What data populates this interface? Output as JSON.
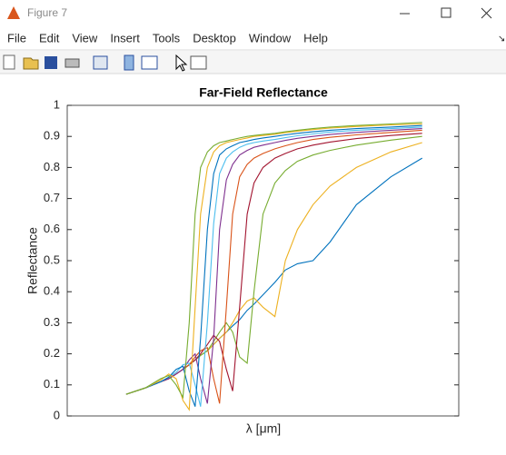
{
  "window": {
    "title": "Figure 7",
    "menu": [
      "File",
      "Edit",
      "View",
      "Insert",
      "Tools",
      "Desktop",
      "Window",
      "Help"
    ]
  },
  "chart_data": {
    "type": "line",
    "title": "Far-Field Reflectance",
    "xlabel": "λ [μm]",
    "ylabel": "Reflectance",
    "xscale": "log",
    "xlim": [
      0.1,
      10
    ],
    "ylim": [
      0,
      1
    ],
    "yticks": [
      0,
      0.1,
      0.2,
      0.3,
      0.4,
      0.5,
      0.6,
      0.7,
      0.8,
      0.9,
      1
    ],
    "x": [
      0.2,
      0.25,
      0.3,
      0.33,
      0.36,
      0.39,
      0.42,
      0.45,
      0.48,
      0.52,
      0.56,
      0.6,
      0.65,
      0.7,
      0.76,
      0.83,
      0.9,
      1.0,
      1.15,
      1.3,
      1.5,
      1.8,
      2.2,
      3,
      4.5,
      6.5
    ],
    "series": [
      {
        "color": "#0072BD",
        "values": [
          0.07,
          0.09,
          0.11,
          0.12,
          0.135,
          0.15,
          0.165,
          0.18,
          0.195,
          0.21,
          0.23,
          0.25,
          0.27,
          0.29,
          0.31,
          0.34,
          0.36,
          0.39,
          0.43,
          0.47,
          0.49,
          0.5,
          0.56,
          0.68,
          0.77,
          0.83
        ]
      },
      {
        "color": "#EDB120",
        "values": [
          0.07,
          0.09,
          0.11,
          0.12,
          0.135,
          0.15,
          0.165,
          0.18,
          0.195,
          0.21,
          0.23,
          0.25,
          0.27,
          0.3,
          0.34,
          0.37,
          0.38,
          0.35,
          0.32,
          0.5,
          0.6,
          0.68,
          0.74,
          0.8,
          0.85,
          0.88
        ]
      },
      {
        "color": "#77AC30",
        "values": [
          0.07,
          0.09,
          0.11,
          0.12,
          0.135,
          0.15,
          0.165,
          0.18,
          0.195,
          0.21,
          0.24,
          0.27,
          0.3,
          0.27,
          0.19,
          0.17,
          0.4,
          0.65,
          0.75,
          0.79,
          0.82,
          0.84,
          0.855,
          0.872,
          0.888,
          0.9
        ]
      },
      {
        "color": "#A2142F",
        "values": [
          0.07,
          0.09,
          0.11,
          0.12,
          0.135,
          0.15,
          0.165,
          0.18,
          0.2,
          0.23,
          0.26,
          0.24,
          0.15,
          0.08,
          0.35,
          0.65,
          0.75,
          0.8,
          0.83,
          0.845,
          0.86,
          0.872,
          0.882,
          0.893,
          0.903,
          0.91
        ]
      },
      {
        "color": "#D95319",
        "values": [
          0.07,
          0.09,
          0.11,
          0.12,
          0.135,
          0.15,
          0.165,
          0.19,
          0.21,
          0.22,
          0.12,
          0.04,
          0.35,
          0.65,
          0.77,
          0.81,
          0.83,
          0.845,
          0.86,
          0.87,
          0.88,
          0.89,
          0.897,
          0.905,
          0.913,
          0.92
        ]
      },
      {
        "color": "#7E2F8E",
        "values": [
          0.07,
          0.09,
          0.11,
          0.12,
          0.135,
          0.15,
          0.18,
          0.2,
          0.12,
          0.04,
          0.25,
          0.6,
          0.76,
          0.81,
          0.84,
          0.855,
          0.865,
          0.872,
          0.88,
          0.887,
          0.894,
          0.9,
          0.906,
          0.913,
          0.92,
          0.925
        ]
      },
      {
        "color": "#4DBEEE",
        "values": [
          0.07,
          0.09,
          0.11,
          0.125,
          0.14,
          0.165,
          0.17,
          0.1,
          0.03,
          0.3,
          0.62,
          0.78,
          0.83,
          0.85,
          0.865,
          0.875,
          0.88,
          0.885,
          0.89,
          0.896,
          0.902,
          0.908,
          0.914,
          0.92,
          0.925,
          0.93
        ]
      },
      {
        "color": "#0072BD",
        "values": [
          0.07,
          0.09,
          0.11,
          0.125,
          0.15,
          0.16,
          0.08,
          0.03,
          0.25,
          0.6,
          0.78,
          0.84,
          0.86,
          0.87,
          0.88,
          0.885,
          0.89,
          0.895,
          0.9,
          0.905,
          0.91,
          0.915,
          0.92,
          0.925,
          0.93,
          0.935
        ]
      },
      {
        "color": "#EDB120",
        "values": [
          0.07,
          0.09,
          0.115,
          0.135,
          0.12,
          0.05,
          0.02,
          0.35,
          0.65,
          0.8,
          0.85,
          0.87,
          0.88,
          0.885,
          0.89,
          0.895,
          0.9,
          0.903,
          0.907,
          0.912,
          0.917,
          0.922,
          0.927,
          0.932,
          0.937,
          0.94
        ]
      },
      {
        "color": "#77AC30",
        "values": [
          0.07,
          0.09,
          0.12,
          0.13,
          0.1,
          0.06,
          0.3,
          0.65,
          0.8,
          0.85,
          0.87,
          0.88,
          0.885,
          0.89,
          0.895,
          0.9,
          0.903,
          0.906,
          0.91,
          0.915,
          0.92,
          0.925,
          0.93,
          0.935,
          0.94,
          0.945
        ]
      }
    ]
  }
}
